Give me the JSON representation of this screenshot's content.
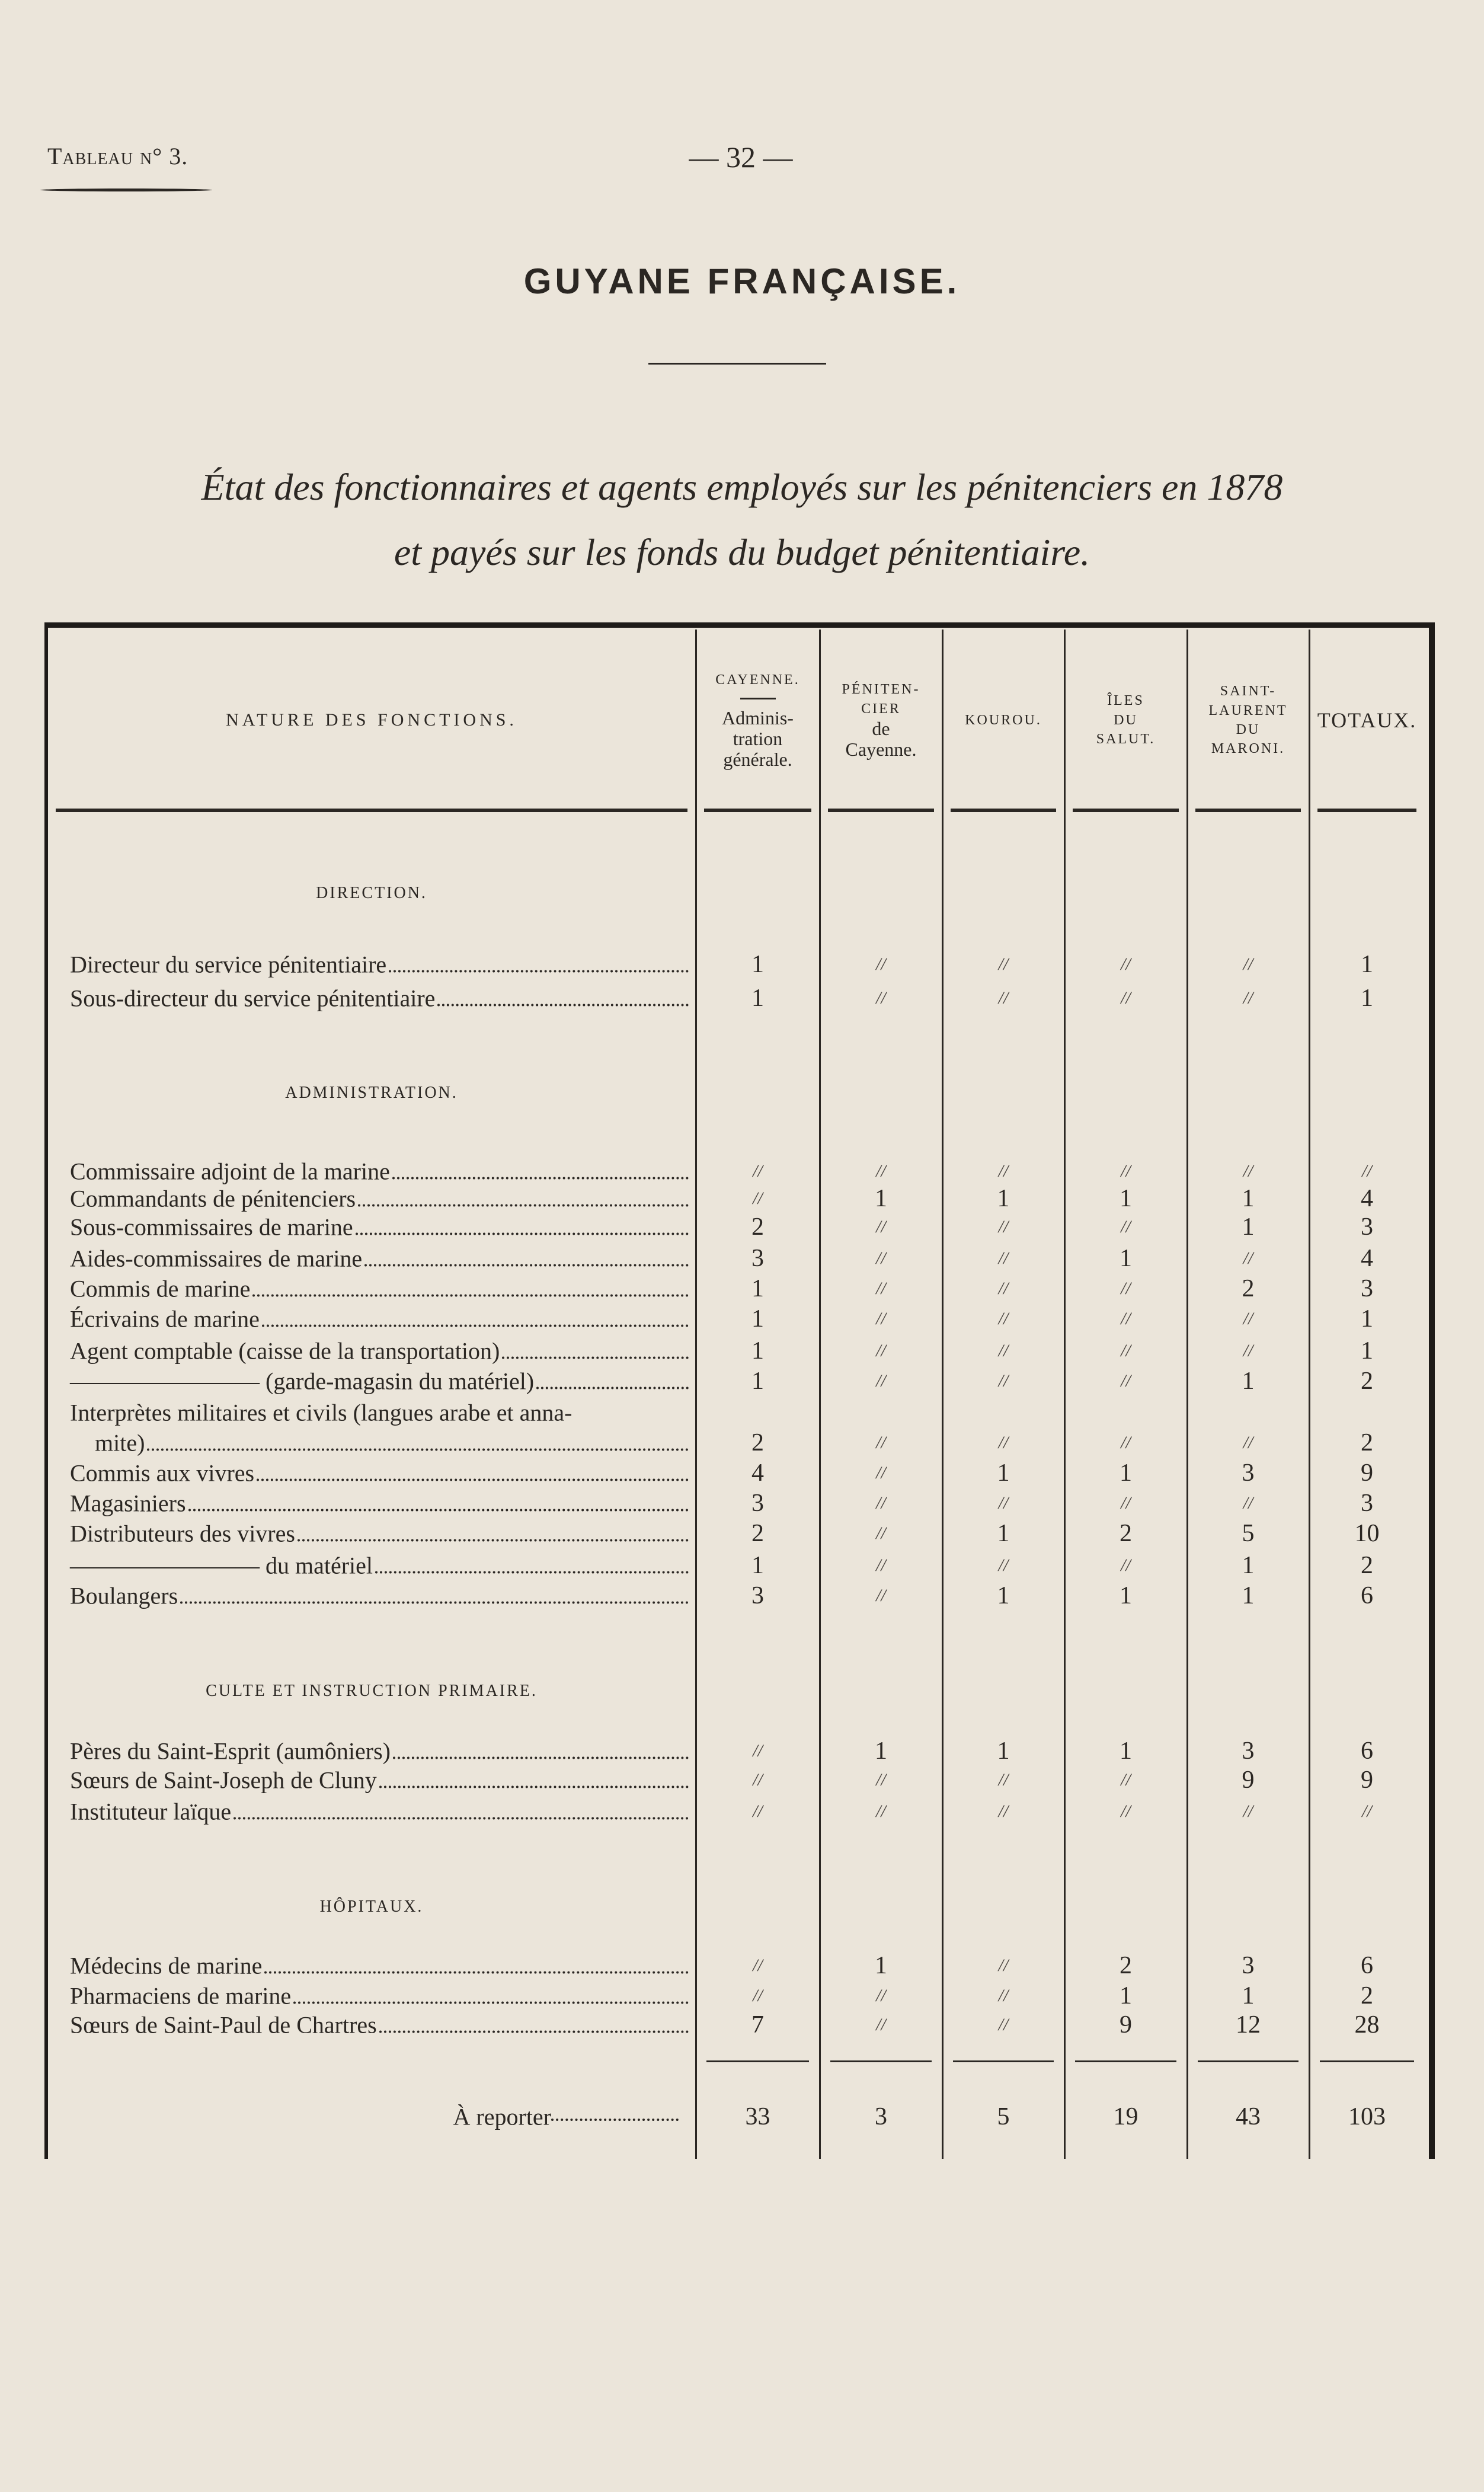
{
  "header": {
    "tableau": "Tableau n° 3.",
    "page_number": "— 32 —",
    "title": "GUYANE FRANÇAISE.",
    "subtitle_1": "État des fonctionnaires et agents employés sur les pénitenciers en 1878",
    "subtitle_2": "et payés sur les fonds du budget pénitentiaire."
  },
  "table": {
    "columns": [
      {
        "id": "nature",
        "lines": [
          "NATURE DES FONCTIONS."
        ]
      },
      {
        "id": "cayenne",
        "lines": [
          "CAYENNE.",
          "—",
          "Adminis-",
          "tration",
          "générale."
        ]
      },
      {
        "id": "penitencier",
        "lines": [
          "PÉNITEN-",
          "CIER",
          "de",
          "Cayenne."
        ]
      },
      {
        "id": "kourou",
        "lines": [
          "KOUROU."
        ]
      },
      {
        "id": "iles",
        "lines": [
          "ÎLES",
          "DU",
          "SALUT."
        ]
      },
      {
        "id": "saint-laurent",
        "lines": [
          "SAINT-",
          "LAURENT",
          "DU",
          "MARONI."
        ]
      },
      {
        "id": "totaux",
        "lines": [
          "TOTAUX."
        ]
      }
    ],
    "rows": [
      {
        "type": "section",
        "label": "DIRECTION."
      },
      {
        "type": "row",
        "label": "Directeur du service pénitentiaire",
        "values": [
          "1",
          "//",
          "//",
          "//",
          "//",
          "1"
        ]
      },
      {
        "type": "row",
        "label": "Sous-directeur du service pénitentiaire",
        "values": [
          "1",
          "//",
          "//",
          "//",
          "//",
          "1"
        ]
      },
      {
        "type": "section",
        "label": "ADMINISTRATION."
      },
      {
        "type": "row",
        "label": "Commissaire adjoint de la marine",
        "values": [
          "//",
          "//",
          "//",
          "//",
          "//",
          "//"
        ]
      },
      {
        "type": "row",
        "label": "Commandants de pénitenciers",
        "values": [
          "//",
          "1",
          "1",
          "1",
          "1",
          "4"
        ]
      },
      {
        "type": "row",
        "label": "Sous-commissaires de marine",
        "values": [
          "2",
          "//",
          "//",
          "//",
          "1",
          "3"
        ]
      },
      {
        "type": "row",
        "label": "Aides-commissaires de marine",
        "values": [
          "3",
          "//",
          "//",
          "1",
          "//",
          "4"
        ]
      },
      {
        "type": "row",
        "label": "Commis de marine",
        "values": [
          "1",
          "//",
          "//",
          "//",
          "2",
          "3"
        ]
      },
      {
        "type": "row",
        "label": "Écrivains de marine",
        "values": [
          "1",
          "//",
          "//",
          "//",
          "//",
          "1"
        ]
      },
      {
        "type": "row",
        "label": "Agent comptable (caisse de la transportation)",
        "values": [
          "1",
          "//",
          "//",
          "//",
          "//",
          "1"
        ]
      },
      {
        "type": "row",
        "label": "———————— (garde-magasin du matériel)",
        "values": [
          "1",
          "//",
          "//",
          "//",
          "1",
          "2"
        ]
      },
      {
        "type": "row",
        "label": "Interprètes militaires et civils (langues arabe et anna-",
        "label_2": "mite)",
        "values": [
          "2",
          "//",
          "//",
          "//",
          "//",
          "2"
        ]
      },
      {
        "type": "row",
        "label": "Commis aux vivres",
        "values": [
          "4",
          "//",
          "1",
          "1",
          "3",
          "9"
        ]
      },
      {
        "type": "row",
        "label": "Magasiniers",
        "values": [
          "3",
          "//",
          "//",
          "//",
          "//",
          "3"
        ]
      },
      {
        "type": "row",
        "label": "Distributeurs des vivres",
        "values": [
          "2",
          "//",
          "1",
          "2",
          "5",
          "10"
        ]
      },
      {
        "type": "row",
        "label": "———————— du matériel",
        "values": [
          "1",
          "//",
          "//",
          "//",
          "1",
          "2"
        ]
      },
      {
        "type": "row",
        "label": "Boulangers",
        "values": [
          "3",
          "//",
          "1",
          "1",
          "1",
          "6"
        ]
      },
      {
        "type": "section",
        "label": "CULTE ET INSTRUCTION PRIMAIRE."
      },
      {
        "type": "row",
        "label": "Pères du Saint-Esprit (aumôniers)",
        "values": [
          "//",
          "1",
          "1",
          "1",
          "3",
          "6"
        ]
      },
      {
        "type": "row",
        "label": "Sœurs de Saint-Joseph de Cluny",
        "values": [
          "//",
          "//",
          "//",
          "//",
          "9",
          "9"
        ]
      },
      {
        "type": "row",
        "label": "Instituteur laïque",
        "values": [
          "//",
          "//",
          "//",
          "//",
          "//",
          "//"
        ]
      },
      {
        "type": "section",
        "label": "HÔPITAUX."
      },
      {
        "type": "row",
        "label": "Médecins de marine",
        "values": [
          "//",
          "1",
          "//",
          "2",
          "3",
          "6"
        ]
      },
      {
        "type": "row",
        "label": "Pharmaciens de marine",
        "values": [
          "//",
          "//",
          "//",
          "1",
          "1",
          "2"
        ]
      },
      {
        "type": "row",
        "label": "Sœurs de Saint-Paul de Chartres",
        "values": [
          "7",
          "//",
          "//",
          "9",
          "12",
          "28"
        ]
      }
    ],
    "total": {
      "label": "À reporter",
      "values": [
        "33",
        "3",
        "5",
        "19",
        "43",
        "103"
      ]
    }
  }
}
